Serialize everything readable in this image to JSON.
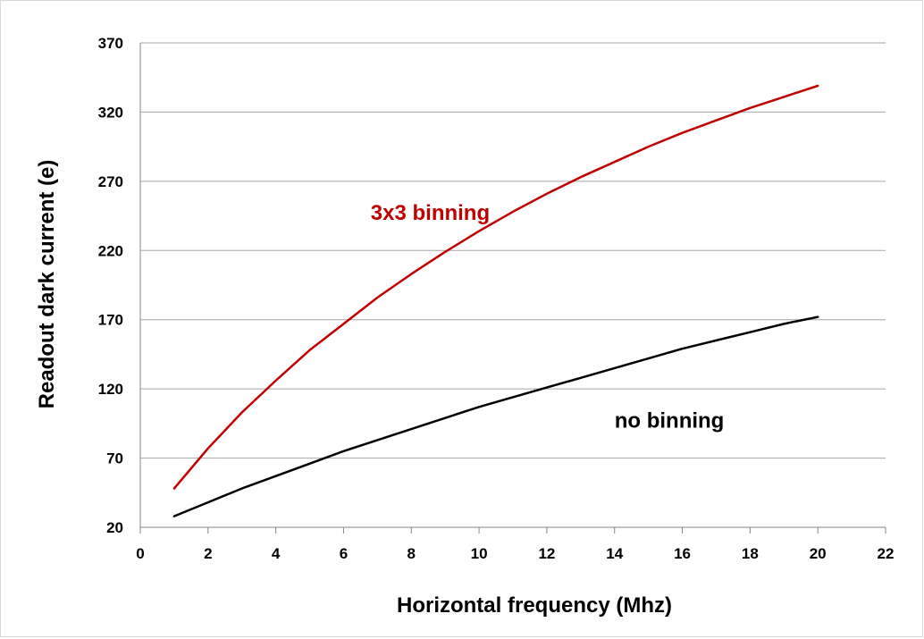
{
  "chart_data": {
    "type": "line",
    "title": "",
    "xlabel": "Horizontal frequency (Mhz)",
    "ylabel": "Readout dark current (e)",
    "xlim": [
      0,
      22
    ],
    "ylim": [
      20,
      370
    ],
    "x_ticks": [
      0,
      2,
      4,
      6,
      8,
      10,
      12,
      14,
      16,
      18,
      20,
      22
    ],
    "y_ticks": [
      20,
      70,
      120,
      170,
      220,
      270,
      320,
      370
    ],
    "grid": "horizontal",
    "legend": "none",
    "series": [
      {
        "name": "3x3 binning",
        "color": "#c00000",
        "x": [
          1,
          2,
          3,
          4,
          5,
          6,
          7,
          8,
          9,
          10,
          11,
          12,
          13,
          14,
          15,
          16,
          17,
          18,
          19,
          20
        ],
        "y": [
          48,
          77,
          103,
          126,
          148,
          167,
          186,
          203,
          219,
          234,
          248,
          261,
          273,
          284,
          295,
          305,
          314,
          323,
          331,
          339
        ]
      },
      {
        "name": "no binning",
        "color": "#000000",
        "x": [
          1,
          2,
          3,
          4,
          5,
          6,
          7,
          8,
          9,
          10,
          11,
          12,
          13,
          14,
          15,
          16,
          17,
          18,
          19,
          20
        ],
        "y": [
          28,
          38,
          48,
          57,
          66,
          75,
          83,
          91,
          99,
          107,
          114,
          121,
          128,
          135,
          142,
          149,
          155,
          161,
          167,
          172
        ]
      }
    ],
    "annotations": [
      {
        "text": "3x3 binning",
        "x": 6.8,
        "y": 242,
        "color": "#c00000"
      },
      {
        "text": "no binning",
        "x": 14,
        "y": 92,
        "color": "#000000"
      }
    ]
  }
}
